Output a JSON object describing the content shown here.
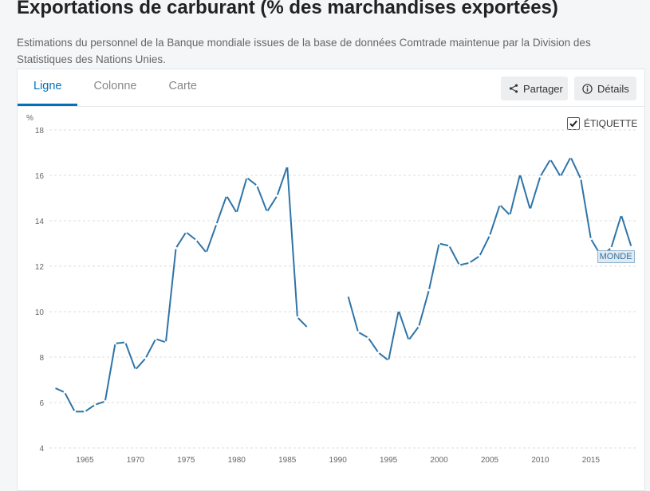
{
  "page": {
    "title": "Exportations de carburant (% des marchandises exportées)",
    "subtitle": "Estimations du personnel de la Banque mondiale issues de la base de données Comtrade maintenue par la Division des Statistiques des Nations Unies."
  },
  "tabs": [
    {
      "label": "Ligne",
      "active": true
    },
    {
      "label": "Colonne",
      "active": false
    },
    {
      "label": "Carte",
      "active": false
    }
  ],
  "toolbar": {
    "share_label": "Partager",
    "details_label": "Détails",
    "share_icon": "share-icon",
    "details_icon": "info-icon"
  },
  "label_toggle": {
    "label": "ÉTIQUETTE",
    "checked": true
  },
  "colors": {
    "line": "#2e74a8",
    "accent": "#0071bc",
    "badge_bg": "#dfeaf3"
  },
  "chart_data": {
    "type": "line",
    "ylabel": "%",
    "ylim": [
      4,
      18
    ],
    "yticks": [
      4,
      6,
      8,
      10,
      12,
      14,
      16,
      18
    ],
    "xlim": [
      1961.5,
      2019.5
    ],
    "xticks": [
      1965,
      1970,
      1975,
      1980,
      1985,
      1990,
      1995,
      2000,
      2005,
      2010,
      2015
    ],
    "grid": true,
    "series": [
      {
        "name": "MONDE",
        "x": [
          1962,
          1963,
          1964,
          1965,
          1966,
          1967,
          1968,
          1969,
          1970,
          1971,
          1972,
          1973,
          1974,
          1975,
          1976,
          1977,
          1978,
          1979,
          1980,
          1981,
          1982,
          1983,
          1984,
          1985,
          1986,
          1987,
          1988,
          1989,
          1990,
          1991,
          1992,
          1993,
          1994,
          1995,
          1996,
          1997,
          1998,
          1999,
          2000,
          2001,
          2002,
          2003,
          2004,
          2005,
          2006,
          2007,
          2008,
          2009,
          2010,
          2011,
          2012,
          2013,
          2014,
          2015,
          2016,
          2017,
          2018,
          2019
        ],
        "values": [
          6.65,
          6.45,
          5.6,
          5.6,
          5.9,
          6.05,
          8.6,
          8.65,
          7.45,
          7.95,
          8.8,
          8.65,
          12.8,
          13.5,
          13.15,
          12.6,
          13.85,
          15.1,
          14.35,
          15.9,
          15.55,
          14.4,
          15.1,
          16.4,
          9.75,
          9.3,
          null,
          null,
          null,
          10.7,
          9.1,
          8.85,
          8.2,
          7.85,
          10.05,
          8.75,
          9.35,
          10.95,
          13.0,
          12.9,
          12.05,
          12.15,
          12.45,
          13.35,
          14.7,
          14.25,
          16.05,
          14.5,
          15.95,
          16.7,
          15.95,
          16.8,
          15.85,
          13.2,
          12.45,
          12.8,
          14.25,
          12.85
        ]
      }
    ]
  }
}
